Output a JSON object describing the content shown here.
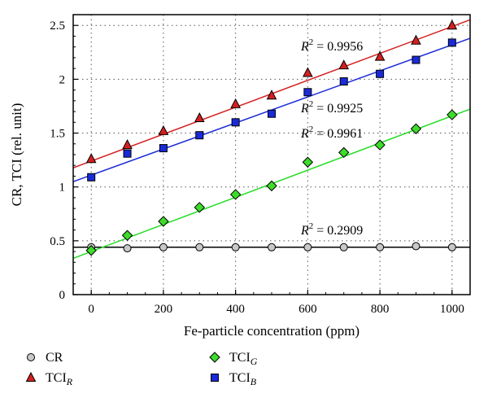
{
  "chart_data": {
    "type": "scatter",
    "xlabel": "Fe-particle concentration (ppm)",
    "ylabel": "CR, TCI (rel. unit)",
    "xlim": [
      -50,
      1050
    ],
    "ylim": [
      0,
      2.6
    ],
    "x_ticks": [
      "0",
      "200",
      "400",
      "600",
      "800",
      "1000"
    ],
    "y_ticks": [
      "0",
      "0.5",
      "1",
      "1.5",
      "2",
      "2.5"
    ],
    "grid": "dotted",
    "legend_position": "bottom",
    "series": [
      {
        "name": "CR",
        "marker": "circle",
        "color": "#c8c8c8",
        "line_color": "#000000",
        "x": [
          0,
          100,
          200,
          300,
          400,
          500,
          600,
          700,
          800,
          900,
          1000
        ],
        "y": [
          0.44,
          0.43,
          0.44,
          0.44,
          0.44,
          0.44,
          0.44,
          0.44,
          0.44,
          0.45,
          0.44
        ],
        "fit": {
          "intercept": 0.44,
          "slope": 0.0,
          "r2_label": "R² = 0.2909"
        }
      },
      {
        "name": "TCI_R",
        "marker": "triangle",
        "color": "#d42020",
        "line_color": "#d42020",
        "x": [
          0,
          100,
          200,
          300,
          400,
          500,
          600,
          700,
          800,
          900,
          1000
        ],
        "y": [
          1.26,
          1.39,
          1.52,
          1.64,
          1.77,
          1.85,
          2.06,
          2.13,
          2.21,
          2.36,
          2.5
        ],
        "fit": {
          "intercept": 1.24,
          "slope": 0.00125,
          "r2_label": "R² = 0.9956"
        }
      },
      {
        "name": "TCI_G",
        "marker": "diamond",
        "color": "#3ddc2a",
        "line_color": "#22dd22",
        "x": [
          0,
          100,
          200,
          300,
          400,
          500,
          600,
          700,
          800,
          900,
          1000
        ],
        "y": [
          0.41,
          0.55,
          0.68,
          0.81,
          0.93,
          1.01,
          1.23,
          1.32,
          1.39,
          1.54,
          1.67
        ],
        "fit": {
          "intercept": 0.4,
          "slope": 0.00126,
          "r2_label": "R² = 0.9961"
        }
      },
      {
        "name": "TCI_B",
        "marker": "square",
        "color": "#1a2ad8",
        "line_color": "#1a2ad8",
        "x": [
          0,
          100,
          200,
          300,
          400,
          500,
          600,
          700,
          800,
          900,
          1000
        ],
        "y": [
          1.09,
          1.31,
          1.36,
          1.48,
          1.6,
          1.68,
          1.88,
          1.98,
          2.05,
          2.18,
          2.34
        ],
        "fit": {
          "intercept": 1.11,
          "slope": 0.00121,
          "r2_label": "R² = 0.9925"
        }
      }
    ]
  },
  "legend": {
    "items": [
      {
        "base": "CR",
        "sub": "",
        "marker": "circle",
        "color": "#c8c8c8"
      },
      {
        "base": "TCI",
        "sub": "G",
        "marker": "diamond",
        "color": "#3ddc2a"
      },
      {
        "base": "TCI",
        "sub": "R",
        "marker": "triangle",
        "color": "#d42020"
      },
      {
        "base": "TCI",
        "sub": "B",
        "marker": "square",
        "color": "#1a2ad8"
      }
    ]
  }
}
